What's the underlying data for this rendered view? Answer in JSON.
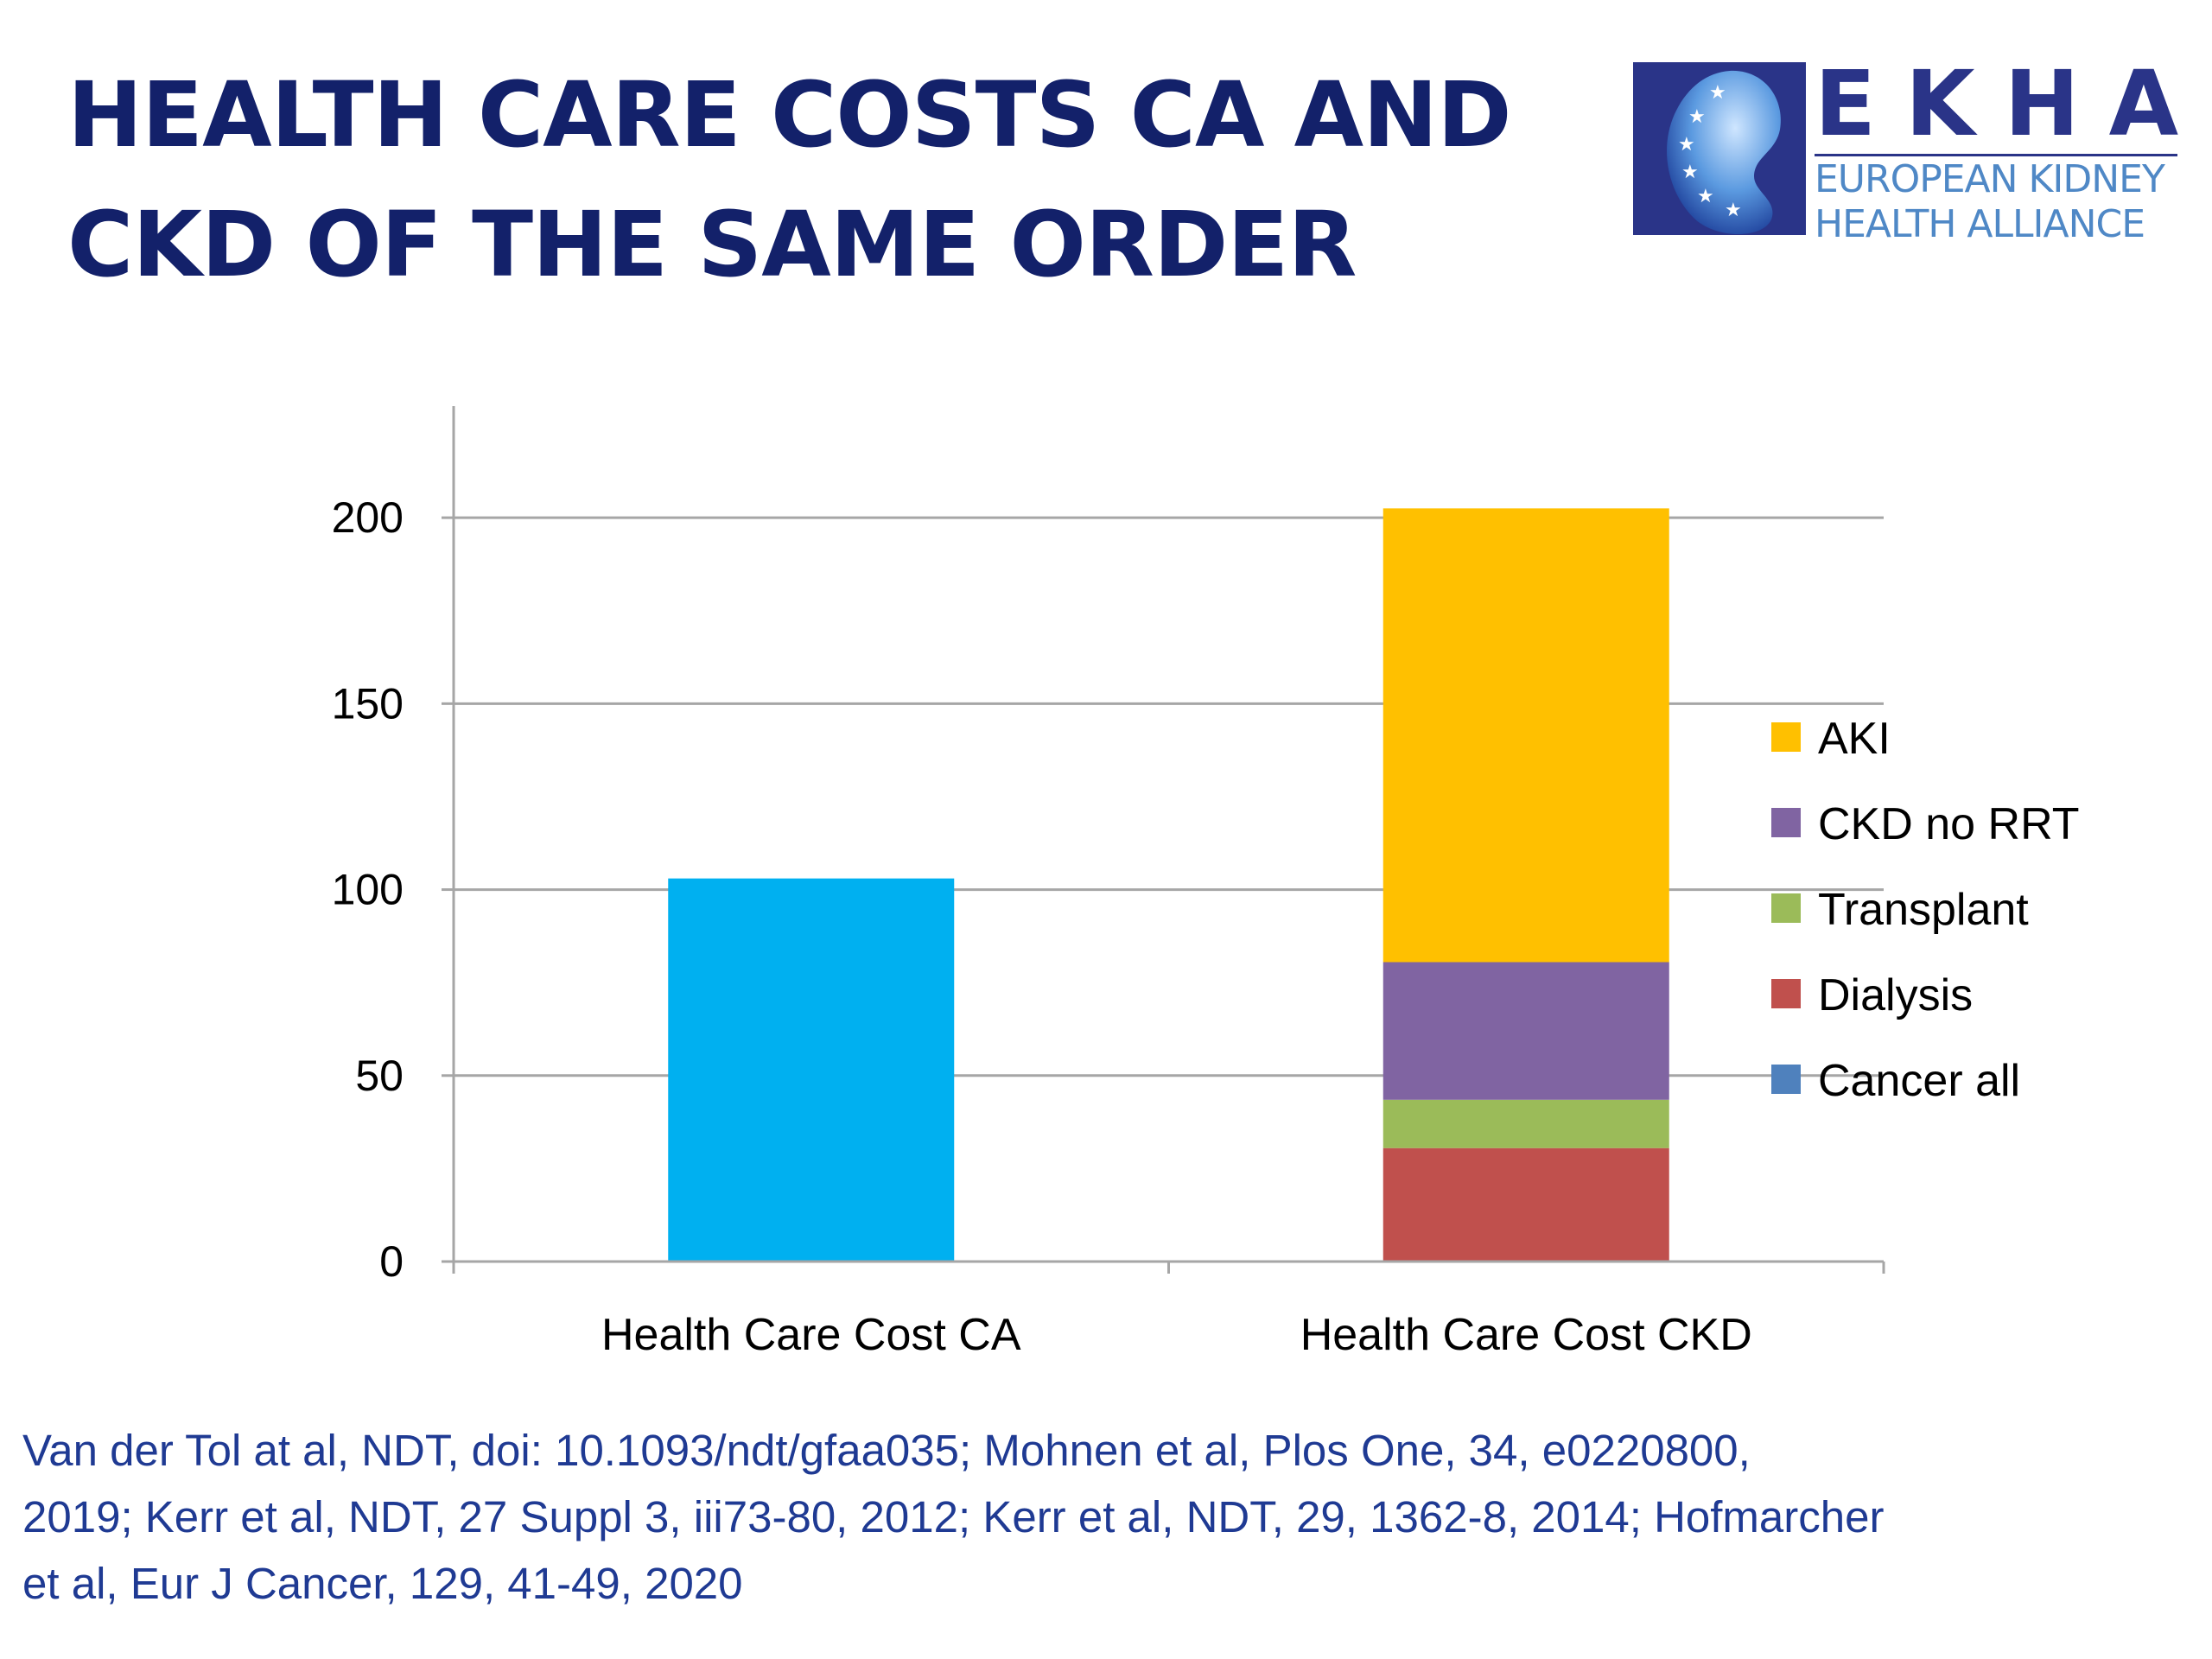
{
  "slide": {
    "title_line1": "HEALTH CARE COSTS CA AND",
    "title_line2": "CKD OF THE SAME ORDER"
  },
  "logo": {
    "name": "EKHA",
    "line1": "EUROPEAN KIDNEY",
    "line2": "HEALTH ALLIANCE",
    "colors": {
      "navy": "#2a3488",
      "light": "#4f88c6"
    }
  },
  "chart_data": {
    "type": "bar",
    "stacked": true,
    "categories": [
      "Health Care Cost CA",
      "Health Care Cost CKD"
    ],
    "series": [
      {
        "name": "Cancer all",
        "values": [
          103,
          0
        ],
        "color": "#00b0f0",
        "legend_color": "#4f81bd"
      },
      {
        "name": "Dialysis",
        "values": [
          0,
          30.5
        ],
        "color": "#c0504d"
      },
      {
        "name": "Transplant",
        "values": [
          0,
          13
        ],
        "color": "#9bbb59"
      },
      {
        "name": "CKD no RRT",
        "values": [
          0,
          37
        ],
        "color": "#8064a2"
      },
      {
        "name": "AKI",
        "values": [
          0,
          122
        ],
        "color": "#ffc000"
      }
    ],
    "ylim": [
      0,
      230
    ],
    "yticks": [
      0,
      50,
      100,
      150,
      200
    ],
    "grid": true,
    "legend_position": "right",
    "legend_order": [
      "AKI",
      "CKD no RRT",
      "Transplant",
      "Dialysis",
      "Cancer all"
    ],
    "title": "",
    "xlabel": "",
    "ylabel": ""
  },
  "citation": {
    "line1": "Van der Tol at al, NDT, doi: 10.1093/ndt/gfaa035;  Mohnen et al, Plos One, 34, e0220800,",
    "line2": "2019; Kerr et al, NDT, 27 Suppl 3, iii73-80, 2012; Kerr et al, NDT, 29, 1362-8, 2014; Hofmarcher",
    "line3": "et al, Eur J Cancer, 129, 41-49, 2020"
  }
}
